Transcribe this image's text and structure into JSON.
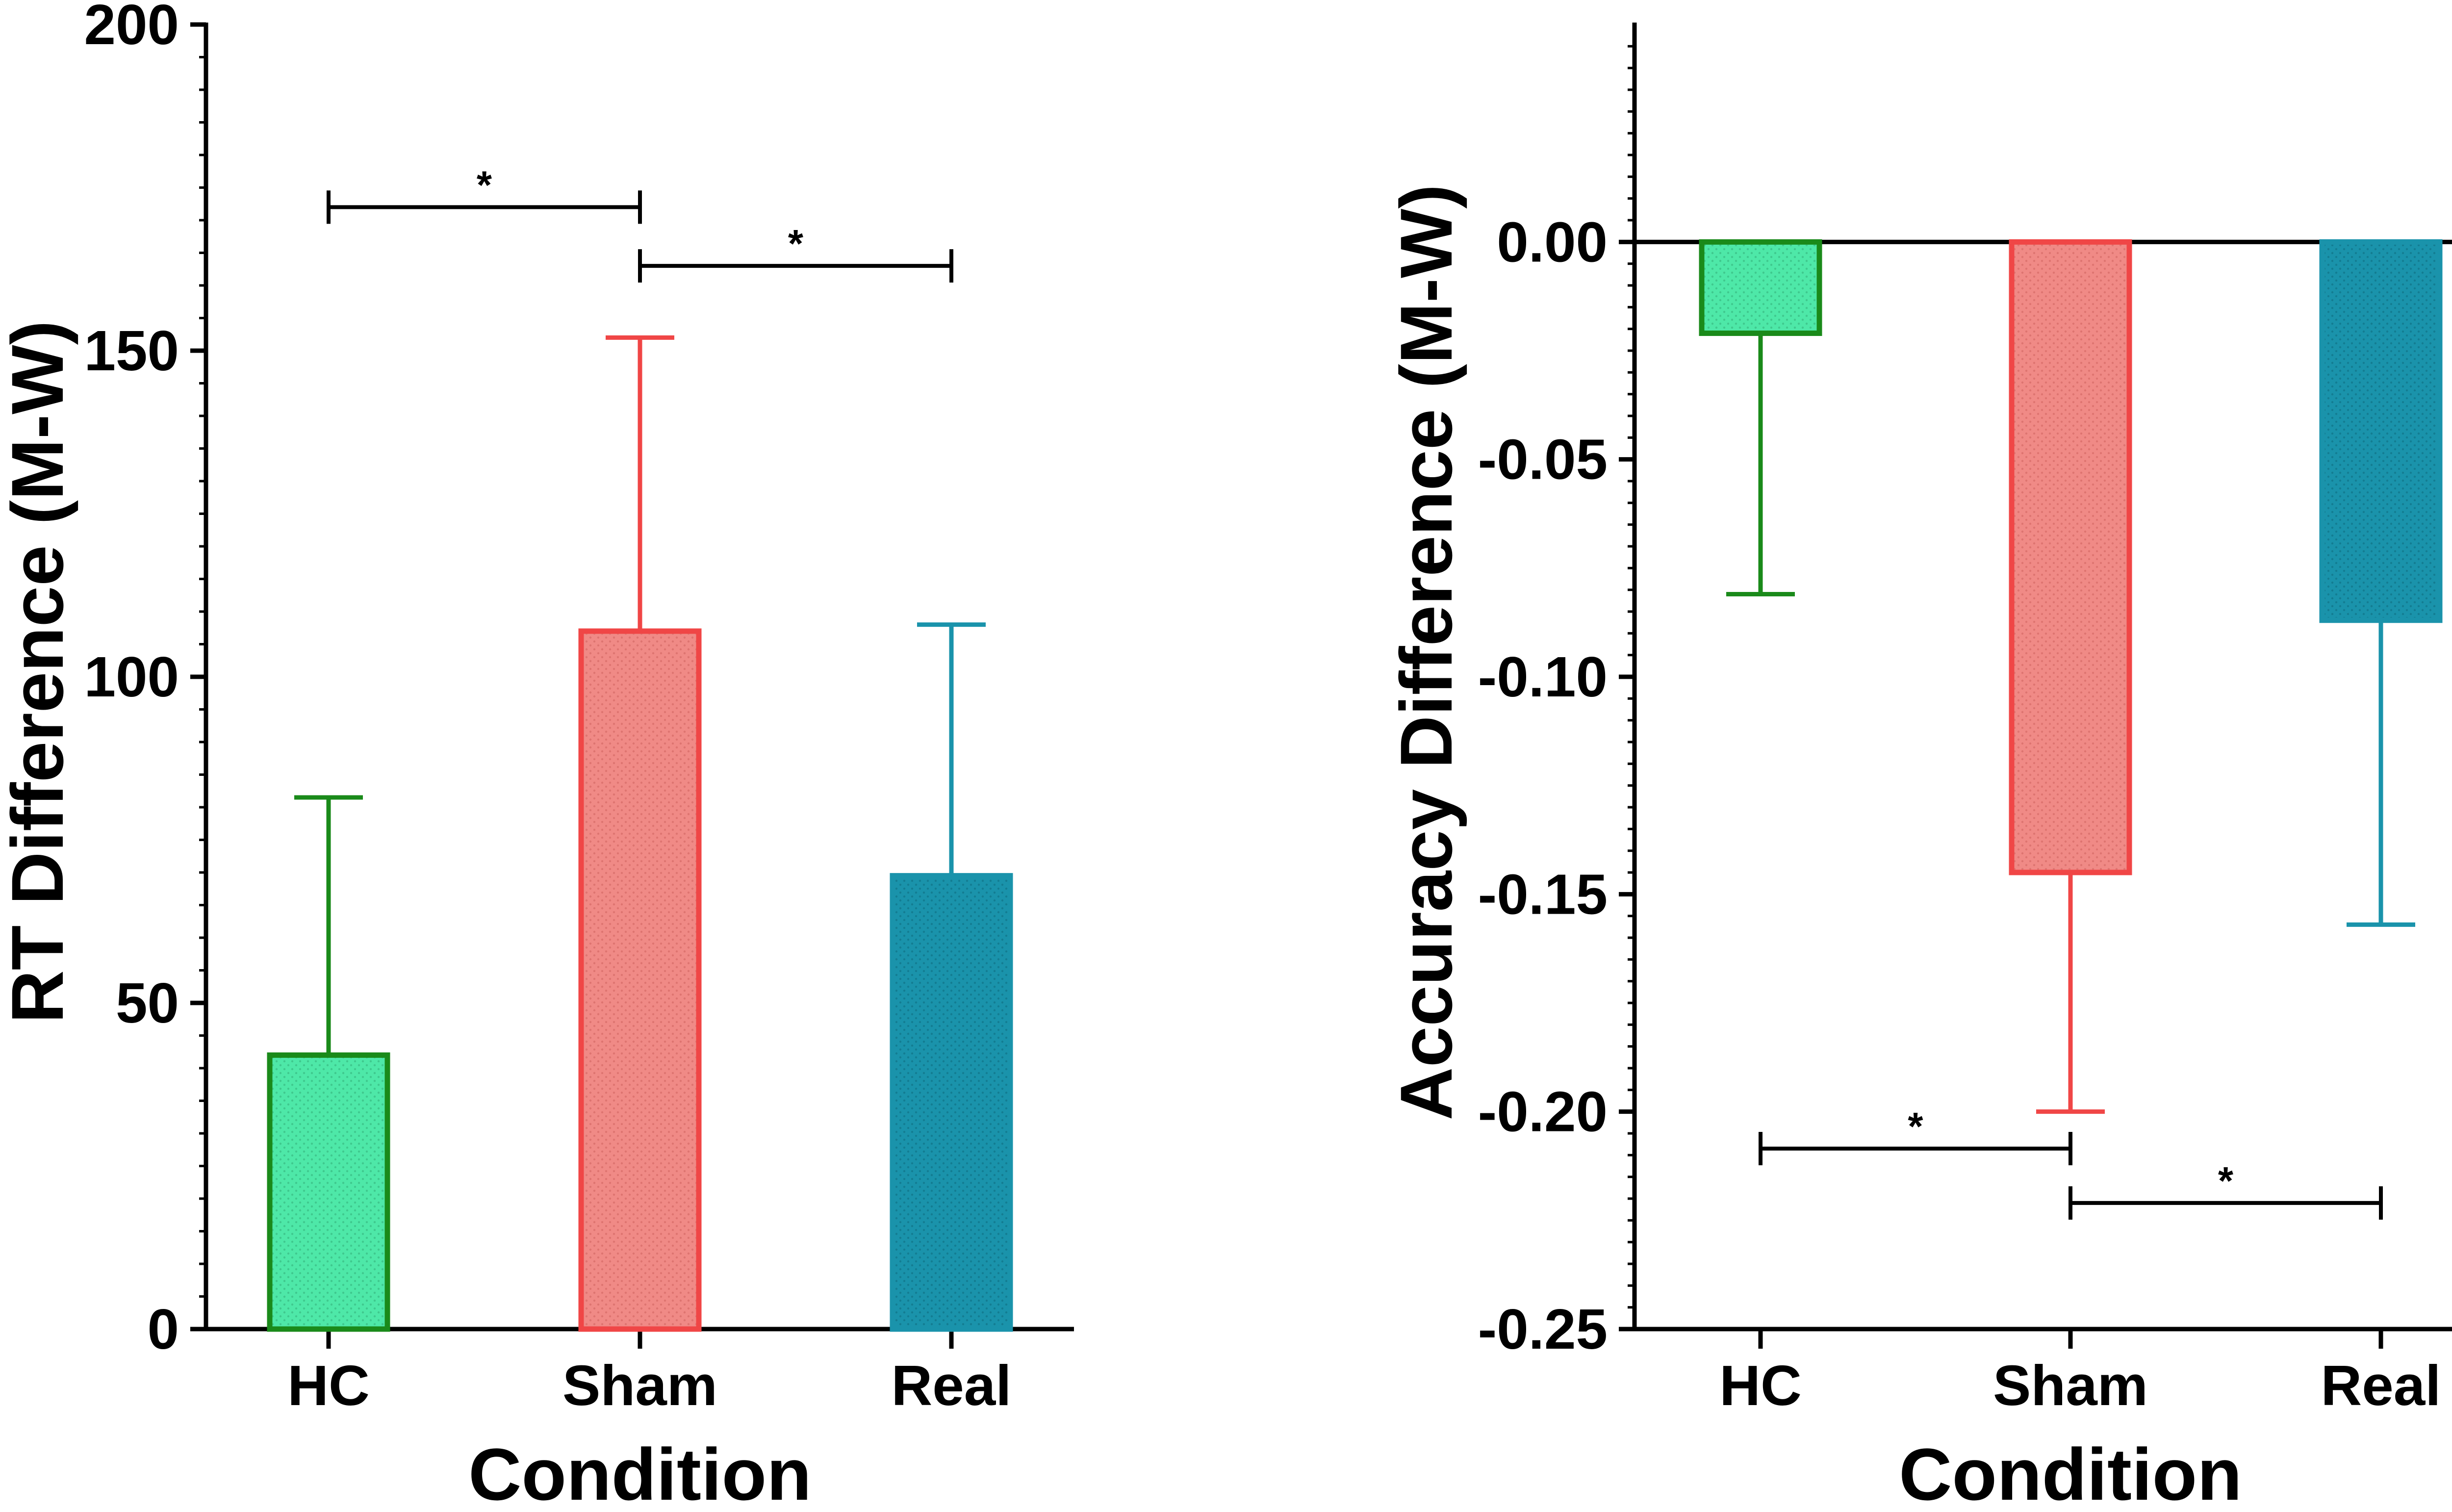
{
  "chart_data": [
    {
      "type": "bar",
      "categories": [
        "HC",
        "Sham",
        "Real"
      ],
      "values": [
        42,
        107,
        69.5
      ],
      "error_upper": [
        81.5,
        152,
        108
      ],
      "xlabel": "Condition",
      "ylabel": "RT Difference (M-W)",
      "ylim": [
        0,
        200
      ],
      "yticks": [
        "0",
        "50",
        "100",
        "150",
        "200"
      ],
      "minor_ticks_per_major": 9,
      "grid": false,
      "error_bar_direction": "up",
      "bar_fill_colors": [
        "#4ee8a8",
        "#f08a86",
        "#1a93ab"
      ],
      "bar_stroke_colors": [
        "#1a8a1a",
        "#f04646",
        "#1a93ab"
      ],
      "significance": [
        {
          "from": "HC",
          "to": "Sham",
          "label": "*",
          "y": 172
        },
        {
          "from": "Sham",
          "to": "Real",
          "label": "*",
          "y": 163
        }
      ]
    },
    {
      "type": "bar",
      "categories": [
        "HC",
        "Sham",
        "Real"
      ],
      "values": [
        -0.021,
        -0.145,
        -0.087
      ],
      "error_lower": [
        -0.081,
        -0.2,
        -0.157
      ],
      "xlabel": "Condition",
      "ylabel": "Accuracy Difference (M-W)",
      "ylim": [
        -0.25,
        0.05
      ],
      "yticks": [
        "0.00",
        "-0.05",
        "-0.10",
        "-0.15",
        "-0.20",
        "-0.25"
      ],
      "minor_ticks_per_major": 9,
      "grid": false,
      "zero_line": true,
      "error_bar_direction": "down",
      "bar_fill_colors": [
        "#4ee8a8",
        "#f08a86",
        "#1a93ab"
      ],
      "bar_stroke_colors": [
        "#1a8a1a",
        "#f04646",
        "#1a93ab"
      ],
      "significance": [
        {
          "from": "HC",
          "to": "Sham",
          "label": "*",
          "y": -0.2085
        },
        {
          "from": "Sham",
          "to": "Real",
          "label": "*",
          "y": -0.221
        }
      ]
    }
  ]
}
